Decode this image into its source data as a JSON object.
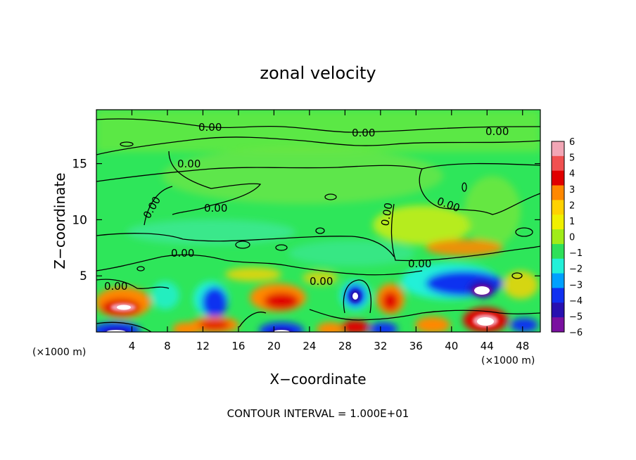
{
  "chart_data": {
    "type": "heatmap",
    "title": "zonal velocity",
    "xlabel": "X−coordinate",
    "ylabel": "Z−coordinate",
    "x_unit_left": "(×1000 m)",
    "x_unit_right": "(×1000 m)",
    "xlim": [
      0,
      50
    ],
    "ylim": [
      0,
      19.8
    ],
    "x_ticks": [
      4,
      8,
      12,
      16,
      20,
      24,
      28,
      32,
      36,
      40,
      44,
      48
    ],
    "y_ticks": [
      5,
      10,
      15
    ],
    "colorbar": {
      "labels": [
        "6",
        "5",
        "4",
        "3",
        "2",
        "1",
        "0",
        "−1",
        "−2",
        "−3",
        "−4",
        "−5",
        "−6"
      ],
      "colors": [
        "#f2a6b5",
        "#f05050",
        "#e00000",
        "#ff8800",
        "#ffd200",
        "#f0f000",
        "#a0ec18",
        "#2ee05a",
        "#22f0d8",
        "#00a0ff",
        "#1030f0",
        "#2810b0",
        "#7a10a0"
      ]
    },
    "contour_labels": [
      "0.00",
      "0.00",
      "0.00",
      "0.00",
      "0.00",
      "0.00",
      "0.00",
      "0.00",
      "0.00",
      "0.00",
      "0.00",
      "0.00"
    ],
    "annotation": "CONTOUR INTERVAL = 1.000E+01",
    "features": [
      {
        "x": 4,
        "z": 2.5,
        "value": 6
      },
      {
        "x": 44,
        "z": 3.5,
        "value": -6
      },
      {
        "x": 20,
        "z": 3.0,
        "value": 4
      },
      {
        "x": 29,
        "z": 3.0,
        "value": -5
      },
      {
        "x": 42,
        "z": 7.5,
        "value": 3
      }
    ]
  }
}
